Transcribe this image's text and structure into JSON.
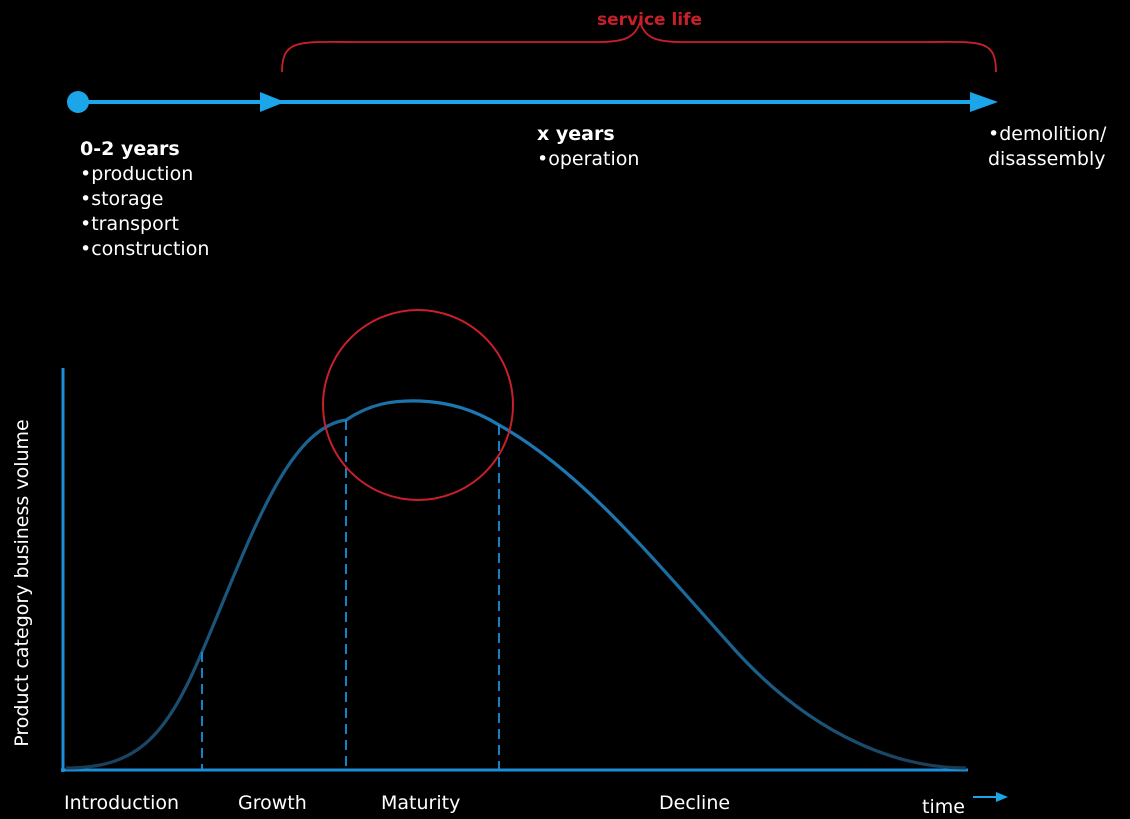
{
  "timeline": {
    "service_life_label": "service life",
    "phase1": {
      "title": "0-2 years",
      "items": [
        "•production",
        "•storage",
        "•transport",
        "•construction"
      ]
    },
    "phase2": {
      "title": "x years",
      "items": [
        "•operation"
      ]
    },
    "phase3": {
      "items": [
        "•demolition/",
        "disassembly"
      ]
    }
  },
  "chart": {
    "y_axis_label": "Product category business volume",
    "x_axis_label": "time",
    "stages": [
      "Introduction",
      "Growth",
      "Maturity",
      "Decline"
    ]
  },
  "colors": {
    "background": "#000000",
    "timeline_blue": "#1aa6e8",
    "axis_blue": "#1a8fd8",
    "curve_blue": "#1c75ad",
    "highlight_red": "#c8202a",
    "text": "#ffffff"
  }
}
